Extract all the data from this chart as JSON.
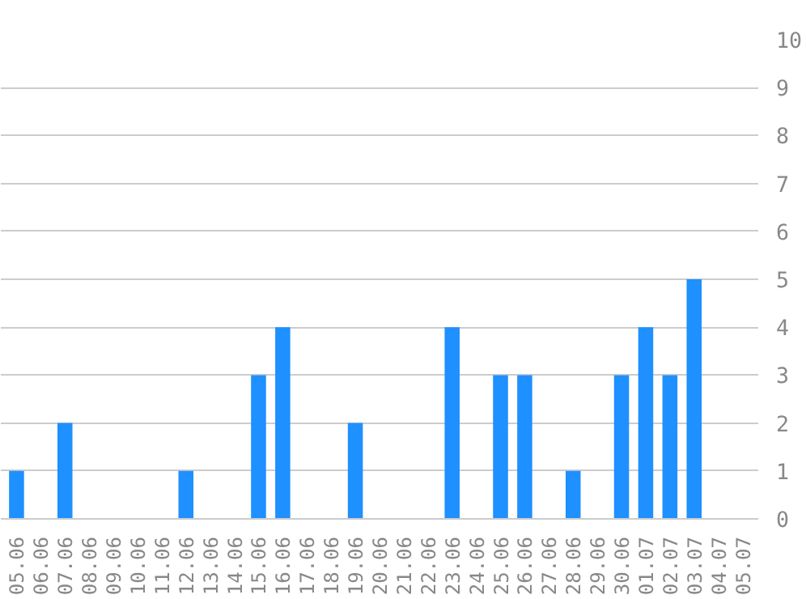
{
  "chart_data": {
    "type": "bar",
    "categories": [
      "05.06",
      "06.06",
      "07.06",
      "08.06",
      "09.06",
      "10.06",
      "11.06",
      "12.06",
      "13.06",
      "14.06",
      "15.06",
      "16.06",
      "17.06",
      "18.06",
      "19.06",
      "20.06",
      "21.06",
      "22.06",
      "23.06",
      "24.06",
      "25.06",
      "26.06",
      "27.06",
      "28.06",
      "29.06",
      "30.06",
      "01.07",
      "02.07",
      "03.07",
      "04.07",
      "05.07"
    ],
    "values": [
      1,
      0,
      2,
      0,
      0,
      0,
      0,
      1,
      0,
      0,
      3,
      4,
      0,
      0,
      2,
      0,
      0,
      0,
      4,
      0,
      3,
      3,
      0,
      1,
      0,
      3,
      4,
      3,
      5,
      0,
      0
    ],
    "color": "#1e90ff",
    "ylim": [
      0,
      10
    ],
    "yticks": [
      0,
      1,
      2,
      3,
      4,
      5,
      6,
      7,
      8,
      9,
      10
    ],
    "grid": "y"
  }
}
